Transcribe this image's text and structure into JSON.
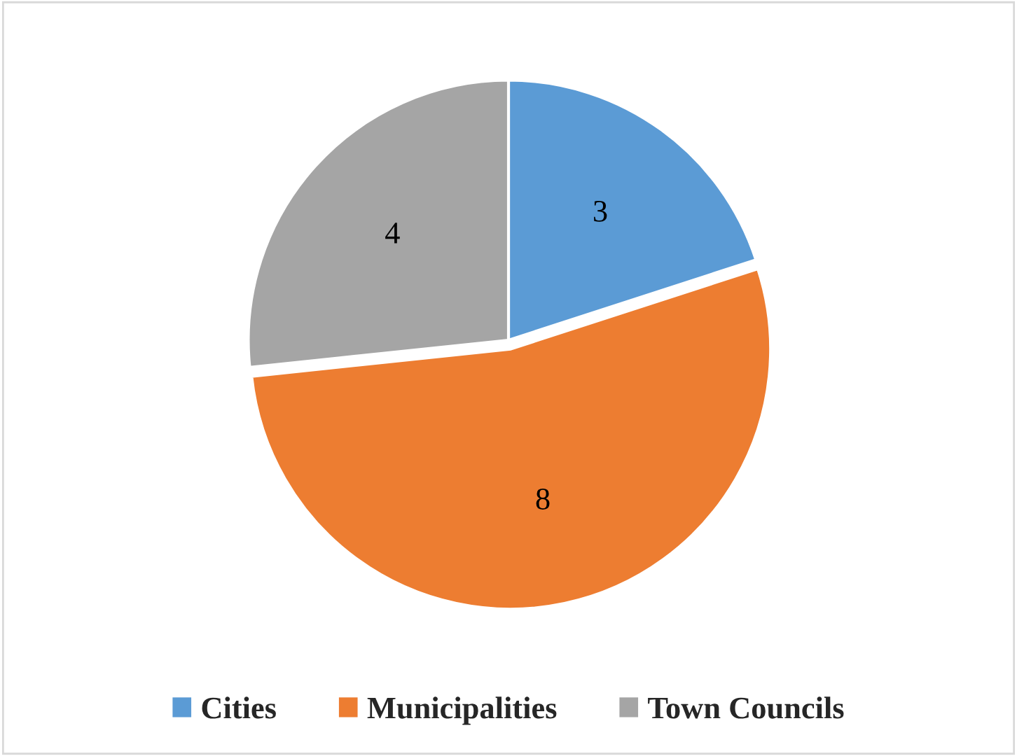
{
  "chart_data": {
    "type": "pie",
    "categories": [
      "Cities",
      "Municipalities",
      "Town Councils"
    ],
    "values": [
      3,
      8,
      4
    ],
    "colors": [
      "#5b9bd5",
      "#ed7d31",
      "#a5a5a5"
    ],
    "data_labels": true,
    "legend": "bottom"
  }
}
